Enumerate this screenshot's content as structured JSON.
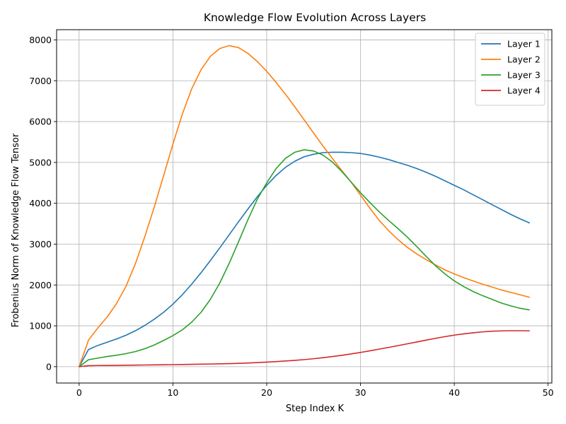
{
  "chart_data": {
    "type": "line",
    "title": "Knowledge Flow Evolution Across Layers",
    "xlabel": "Step Index K",
    "ylabel": "Frobenius Norm of Knowledge Flow Tensor",
    "xlim": [
      -2.4,
      50.4
    ],
    "ylim": [
      -400,
      8250
    ],
    "xticks": [
      0,
      10,
      20,
      30,
      40,
      50
    ],
    "yticks": [
      0,
      1000,
      2000,
      3000,
      4000,
      5000,
      6000,
      7000,
      8000
    ],
    "grid": true,
    "legend_position": "top-right",
    "x": [
      0,
      1,
      2,
      3,
      4,
      5,
      6,
      7,
      8,
      9,
      10,
      11,
      12,
      13,
      14,
      15,
      16,
      17,
      18,
      19,
      20,
      21,
      22,
      23,
      24,
      25,
      26,
      27,
      28,
      29,
      30,
      31,
      32,
      33,
      34,
      35,
      36,
      37,
      38,
      39,
      40,
      41,
      42,
      43,
      44,
      45,
      46,
      47,
      48
    ],
    "series": [
      {
        "name": "Layer 1",
        "color": "#1f77b4",
        "values": [
          0,
          420,
          520,
          600,
          680,
          770,
          880,
          1010,
          1160,
          1330,
          1530,
          1760,
          2020,
          2300,
          2600,
          2910,
          3230,
          3550,
          3860,
          4160,
          4440,
          4680,
          4880,
          5030,
          5140,
          5200,
          5240,
          5250,
          5250,
          5240,
          5220,
          5180,
          5130,
          5070,
          5000,
          4930,
          4850,
          4760,
          4660,
          4550,
          4440,
          4330,
          4210,
          4090,
          3970,
          3850,
          3730,
          3620,
          3520
        ]
      },
      {
        "name": "Layer 2",
        "color": "#ff7f0e",
        "values": [
          0,
          650,
          950,
          1220,
          1550,
          1970,
          2520,
          3180,
          3900,
          4670,
          5450,
          6180,
          6800,
          7270,
          7600,
          7790,
          7860,
          7810,
          7670,
          7470,
          7230,
          6960,
          6670,
          6360,
          6040,
          5720,
          5400,
          5100,
          4800,
          4520,
          4200,
          3880,
          3580,
          3330,
          3110,
          2920,
          2760,
          2620,
          2490,
          2370,
          2270,
          2180,
          2100,
          2020,
          1950,
          1880,
          1820,
          1760,
          1700
        ]
      },
      {
        "name": "Layer 3",
        "color": "#2ca02c",
        "values": [
          0,
          170,
          210,
          250,
          280,
          320,
          370,
          440,
          530,
          640,
          760,
          900,
          1090,
          1330,
          1650,
          2050,
          2530,
          3060,
          3600,
          4100,
          4500,
          4850,
          5100,
          5250,
          5310,
          5280,
          5180,
          5010,
          4780,
          4520,
          4260,
          4020,
          3790,
          3580,
          3380,
          3170,
          2940,
          2700,
          2470,
          2270,
          2100,
          1960,
          1840,
          1740,
          1650,
          1560,
          1490,
          1430,
          1390
        ]
      },
      {
        "name": "Layer 4",
        "color": "#d62728",
        "values": [
          0,
          25,
          28,
          30,
          32,
          35,
          38,
          41,
          44,
          47,
          50,
          53,
          57,
          61,
          65,
          70,
          75,
          82,
          90,
          100,
          112,
          125,
          140,
          155,
          173,
          195,
          220,
          248,
          278,
          312,
          348,
          388,
          430,
          472,
          515,
          560,
          605,
          650,
          694,
          735,
          772,
          804,
          830,
          852,
          868,
          876,
          880,
          880,
          878
        ]
      }
    ]
  }
}
